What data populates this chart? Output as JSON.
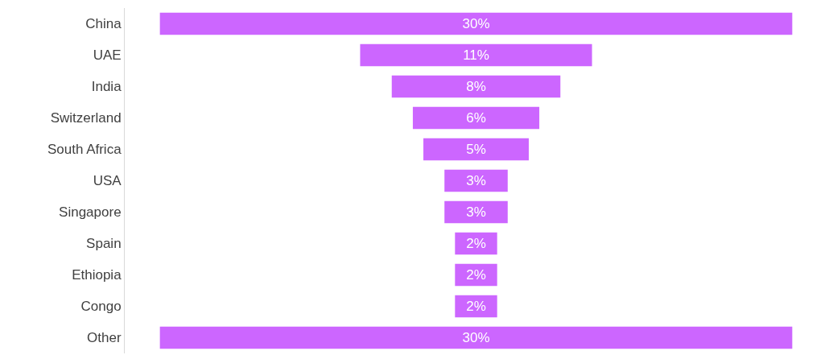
{
  "chart_data": {
    "type": "other",
    "categories": [
      "China",
      "UAE",
      "India",
      "Switzerland",
      "South Africa",
      "USA",
      "Singapore",
      "Spain",
      "Ethiopia",
      "Congo",
      "Other"
    ],
    "values": [
      30,
      11,
      8,
      6,
      5,
      3,
      3,
      2,
      2,
      2,
      30
    ],
    "value_labels": [
      "30%",
      "11%",
      "8%",
      "6%",
      "5%",
      "3%",
      "3%",
      "2%",
      "2%",
      "2%",
      "30%"
    ],
    "color": "#cc66ff"
  }
}
